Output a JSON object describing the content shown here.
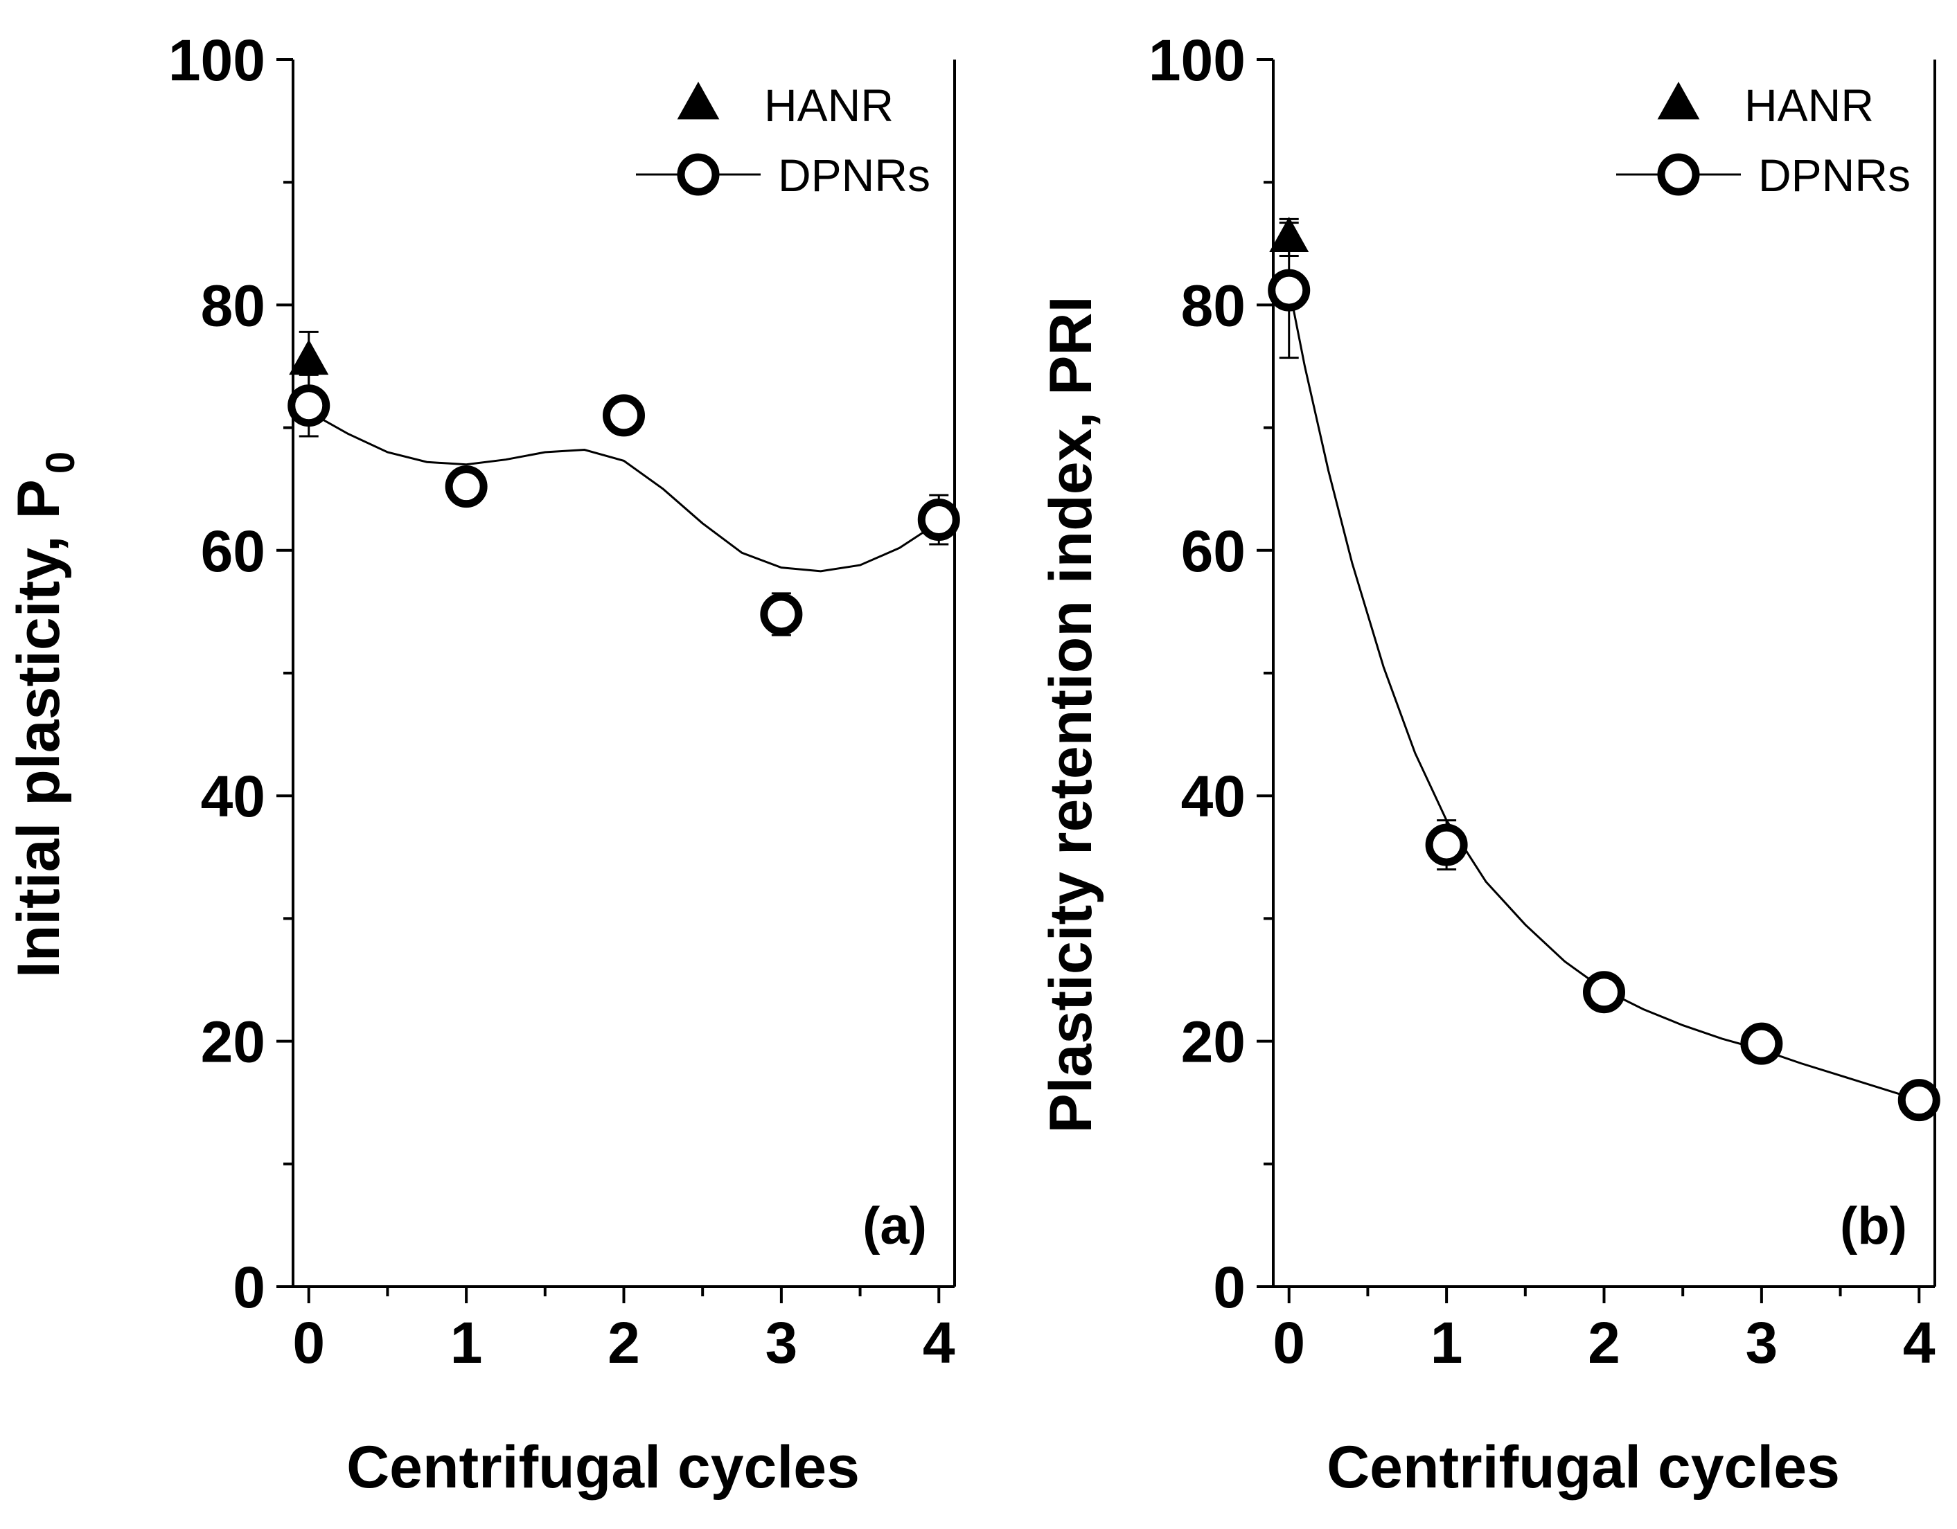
{
  "chart_data": [
    {
      "type": "scatter",
      "panel_label": "(a)",
      "xlabel": "Centrifugal cycles",
      "ylabel": "Initial plasticity, P",
      "ylabel_subscript": "0",
      "xlim": [
        -0.1,
        4.1
      ],
      "ylim": [
        0,
        100
      ],
      "xticks": [
        0,
        1,
        2,
        3,
        4
      ],
      "yticks": [
        0,
        20,
        40,
        60,
        80,
        100
      ],
      "legend_position": "top-right",
      "series": [
        {
          "name": "HANR",
          "marker": "triangle",
          "points": [
            {
              "x": 0,
              "y": 75.5,
              "err": 2.3
            }
          ]
        },
        {
          "name": "DPNRs",
          "marker": "open-circle",
          "points": [
            {
              "x": 0,
              "y": 71.8,
              "err": 2.5
            },
            {
              "x": 1,
              "y": 65.2,
              "err": 1.0
            },
            {
              "x": 2,
              "y": 71.0,
              "err": 0.8
            },
            {
              "x": 3,
              "y": 54.8,
              "err": 1.7
            },
            {
              "x": 4,
              "y": 62.5,
              "err": 2.0
            }
          ],
          "fit": {
            "x": [
              0,
              0.25,
              0.5,
              0.75,
              1.0,
              1.25,
              1.5,
              1.75,
              2.0,
              2.25,
              2.5,
              2.75,
              3.0,
              3.25,
              3.5,
              3.75,
              4.0
            ],
            "y": [
              71.3,
              69.5,
              68.0,
              67.2,
              67.0,
              67.4,
              68.0,
              68.2,
              67.3,
              65.0,
              62.2,
              59.8,
              58.6,
              58.3,
              58.8,
              60.2,
              62.3
            ]
          }
        }
      ]
    },
    {
      "type": "scatter",
      "panel_label": "(b)",
      "xlabel": "Centrifugal cycles",
      "ylabel": "Plasticity retention index, PRI",
      "xlim": [
        -0.1,
        4.1
      ],
      "ylim": [
        0,
        100
      ],
      "xticks": [
        0,
        1,
        2,
        3,
        4
      ],
      "yticks": [
        0,
        20,
        40,
        60,
        80,
        100
      ],
      "legend_position": "top-right",
      "series": [
        {
          "name": "HANR",
          "marker": "triangle",
          "points": [
            {
              "x": 0,
              "y": 85.5,
              "err": 1.5
            }
          ]
        },
        {
          "name": "DPNRs",
          "marker": "open-circle",
          "points": [
            {
              "x": 0,
              "y": 81.2,
              "err": 5.5
            },
            {
              "x": 1,
              "y": 36.0,
              "err": 2.0
            },
            {
              "x": 2,
              "y": 24.0,
              "err": 1.3
            },
            {
              "x": 3,
              "y": 19.8,
              "err": 1.2
            },
            {
              "x": 4,
              "y": 15.2,
              "err": 1.0
            }
          ],
          "fit": {
            "x": [
              0,
              0.1,
              0.25,
              0.4,
              0.6,
              0.8,
              1.0,
              1.25,
              1.5,
              1.75,
              2.0,
              2.25,
              2.5,
              2.75,
              3.0,
              3.25,
              3.5,
              3.75,
              4.0
            ],
            "y": [
              81.5,
              75.0,
              66.5,
              59.0,
              50.5,
              43.5,
              38.0,
              33.0,
              29.5,
              26.5,
              24.2,
              22.6,
              21.3,
              20.2,
              19.3,
              18.2,
              17.2,
              16.2,
              15.2
            ]
          }
        }
      ]
    }
  ]
}
